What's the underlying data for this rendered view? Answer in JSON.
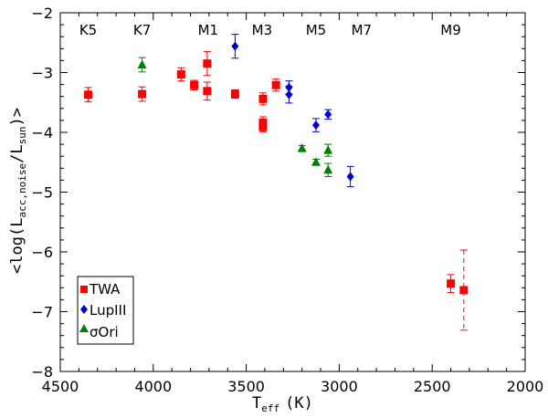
{
  "chart_data": {
    "type": "scatter",
    "title": "",
    "xlabel": {
      "main": "T",
      "sub": "eff",
      "unit": "(K)"
    },
    "ylabel": {
      "prefix": "<log(L",
      "sub1": "acc,noise",
      "mid": "/L",
      "sub2": "sun",
      "suffix": ")>"
    },
    "xlim": [
      4500,
      2000
    ],
    "ylim": [
      -8,
      -2
    ],
    "xticks": [
      4500,
      4000,
      3500,
      3000,
      2500,
      2000
    ],
    "yticks": [
      -8,
      -7,
      -6,
      -5,
      -4,
      -3,
      -2
    ],
    "spectral_types": [
      {
        "label": "K5",
        "teff": 4350
      },
      {
        "label": "K7",
        "teff": 4060
      },
      {
        "label": "M1",
        "teff": 3705
      },
      {
        "label": "M3",
        "teff": 3415
      },
      {
        "label": "M5",
        "teff": 3125
      },
      {
        "label": "M7",
        "teff": 2880
      },
      {
        "label": "M9",
        "teff": 2400
      }
    ],
    "series": [
      {
        "name": "TWA",
        "marker": "square",
        "color": "#ff0000",
        "points": [
          {
            "x": 4350,
            "y": -3.37,
            "err": 0.12
          },
          {
            "x": 4060,
            "y": -3.36,
            "err": 0.12
          },
          {
            "x": 3850,
            "y": -3.03,
            "err": 0.11
          },
          {
            "x": 3780,
            "y": -3.21,
            "err": 0.08
          },
          {
            "x": 3710,
            "y": -2.85,
            "err": 0.2
          },
          {
            "x": 3710,
            "y": -3.31,
            "err": 0.15
          },
          {
            "x": 3560,
            "y": -3.36,
            "err": 0.07
          },
          {
            "x": 3410,
            "y": -3.44,
            "err": 0.1
          },
          {
            "x": 3410,
            "y": -3.84,
            "err": 0.1
          },
          {
            "x": 3410,
            "y": -3.91,
            "err": 0.08
          },
          {
            "x": 3340,
            "y": -3.21,
            "err": 0.1
          },
          {
            "x": 2400,
            "y": -6.53,
            "err": 0.15
          },
          {
            "x": 2330,
            "y": -6.64,
            "err": 0.67,
            "dashed": true
          }
        ]
      },
      {
        "name": "LupIII",
        "marker": "diamond",
        "color": "#0000cc",
        "points": [
          {
            "x": 3560,
            "y": -2.56,
            "err": 0.2
          },
          {
            "x": 3270,
            "y": -3.25,
            "err": 0.11
          },
          {
            "x": 3270,
            "y": -3.37,
            "err": 0.14
          },
          {
            "x": 3125,
            "y": -3.88,
            "err": 0.11
          },
          {
            "x": 3060,
            "y": -3.7,
            "err": 0.08
          },
          {
            "x": 2940,
            "y": -4.74,
            "err": 0.17
          }
        ]
      },
      {
        "name": "σOri",
        "marker": "triangle",
        "color": "#008000",
        "points": [
          {
            "x": 4060,
            "y": -2.87,
            "err": 0.12
          },
          {
            "x": 3200,
            "y": -4.27,
            "err": 0.05
          },
          {
            "x": 3125,
            "y": -4.5,
            "err": 0.05
          },
          {
            "x": 3060,
            "y": -4.3,
            "err": 0.1
          },
          {
            "x": 3060,
            "y": -4.63,
            "err": 0.11
          }
        ]
      }
    ],
    "legend": {
      "placement": "bottom-left",
      "entries": [
        "TWA",
        "LupIII",
        "σOri"
      ]
    }
  }
}
